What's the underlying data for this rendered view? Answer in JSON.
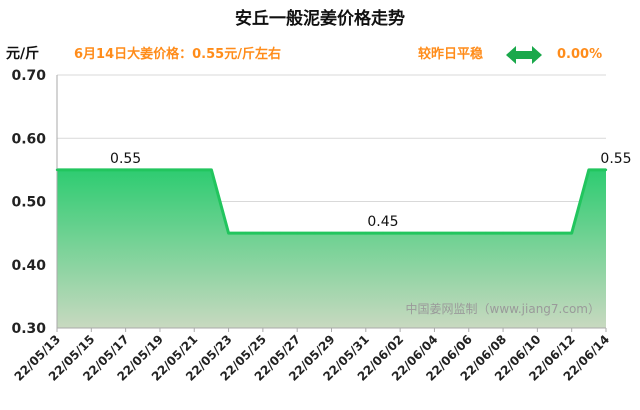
{
  "title": "安丘一般泥姜价格走势",
  "unit": "元/斤",
  "info": {
    "price_text": "6月14日大姜价格：0.55元/斤左右",
    "trend_text": "较昨日平稳",
    "change_text": "0.00%",
    "trend_icon": "double-arrow-icon",
    "trend_color": "#1aa84b"
  },
  "watermark": "中国姜网监制（www.jiang7.com）",
  "chart_data": {
    "type": "area",
    "title": "安丘一般泥姜价格走势",
    "ylabel": "元/斤",
    "xlabel": "",
    "ylim": [
      0.3,
      0.7
    ],
    "yticks": [
      "0.30",
      "0.40",
      "0.50",
      "0.60",
      "0.70"
    ],
    "x": [
      "22/05/13",
      "22/05/14",
      "22/05/15",
      "22/05/16",
      "22/05/17",
      "22/05/18",
      "22/05/19",
      "22/05/20",
      "22/05/21",
      "22/05/22",
      "22/05/23",
      "22/05/24",
      "22/05/25",
      "22/05/26",
      "22/05/27",
      "22/05/28",
      "22/05/29",
      "22/05/30",
      "22/05/31",
      "22/06/01",
      "22/06/02",
      "22/06/03",
      "22/06/04",
      "22/06/05",
      "22/06/06",
      "22/06/07",
      "22/06/08",
      "22/06/09",
      "22/06/10",
      "22/06/11",
      "22/06/12",
      "22/06/13",
      "22/06/14"
    ],
    "xtick_labels": [
      "22/05/13",
      "22/05/15",
      "22/05/17",
      "22/05/19",
      "22/05/21",
      "22/05/23",
      "22/05/25",
      "22/05/27",
      "22/05/29",
      "22/05/31",
      "22/06/02",
      "22/06/04",
      "22/06/06",
      "22/06/08",
      "22/06/10",
      "22/06/12",
      "22/06/14"
    ],
    "series": [
      {
        "values": [
          0.55,
          0.55,
          0.55,
          0.55,
          0.55,
          0.55,
          0.55,
          0.55,
          0.55,
          0.55,
          0.45,
          0.45,
          0.45,
          0.45,
          0.45,
          0.45,
          0.45,
          0.45,
          0.45,
          0.45,
          0.45,
          0.45,
          0.45,
          0.45,
          0.45,
          0.45,
          0.45,
          0.45,
          0.45,
          0.45,
          0.45,
          0.55,
          0.55
        ]
      }
    ],
    "data_labels": [
      {
        "x": "22/05/17",
        "y": 0.55,
        "text": "0.55"
      },
      {
        "x": "22/06/01",
        "y": 0.45,
        "text": "0.45"
      },
      {
        "x": "22/06/14",
        "y": 0.55,
        "text": "0.55"
      }
    ],
    "grid": true,
    "legend": "none",
    "colors": {
      "line": "#22c55e",
      "fill_top": "#2ecc71",
      "fill_bottom": "#c8d9c0",
      "grid": "#d9d9d9",
      "axis": "#aaaaaa"
    }
  }
}
